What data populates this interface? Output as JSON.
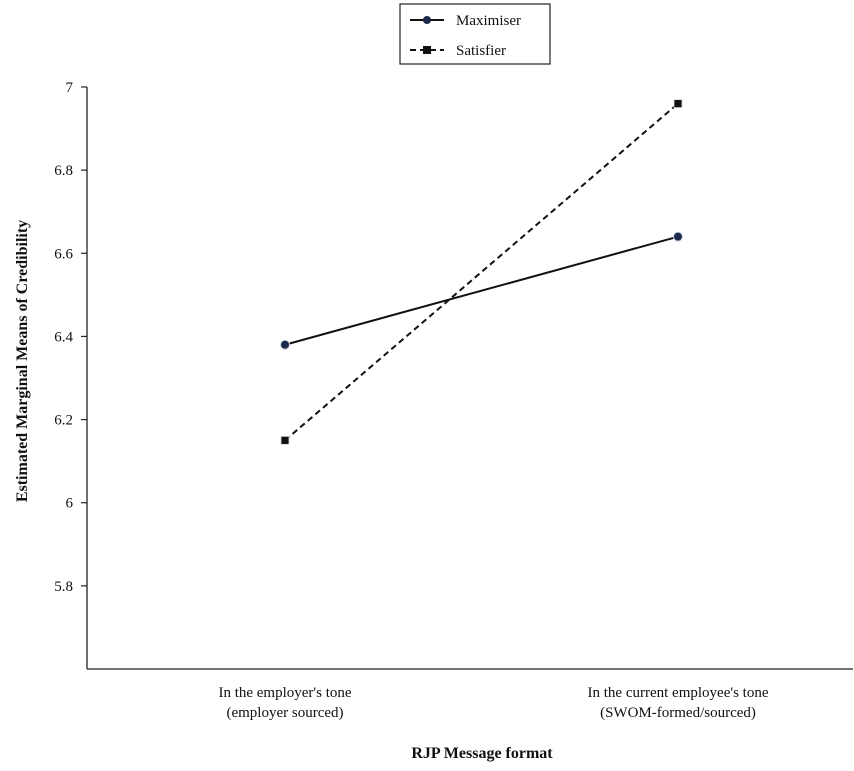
{
  "chart_data": {
    "type": "line",
    "xlabel": "RJP Message format",
    "ylabel": "Estimated Marginal Means of Credibility",
    "categories": [
      [
        "In the employer's tone",
        "(employer sourced)"
      ],
      [
        "In the current employee's tone",
        "(SWOM-formed/sourced)"
      ]
    ],
    "ylim": [
      5.6,
      7.0
    ],
    "yticks": [
      5.8,
      6,
      6.2,
      6.4,
      6.6,
      6.8,
      7
    ],
    "ytick_labels": [
      "5.8",
      "6",
      "6.2",
      "6.4",
      "6.6",
      "6.8",
      "7"
    ],
    "grid": false,
    "legend_position": "top-center",
    "series": [
      {
        "name": "Maximiser",
        "values": [
          6.38,
          6.64
        ],
        "line_style": "solid",
        "marker": "circle",
        "color": "#111111"
      },
      {
        "name": "Satisfier",
        "values": [
          6.15,
          6.96
        ],
        "line_style": "dashed",
        "marker": "square",
        "color": "#111111"
      }
    ]
  }
}
